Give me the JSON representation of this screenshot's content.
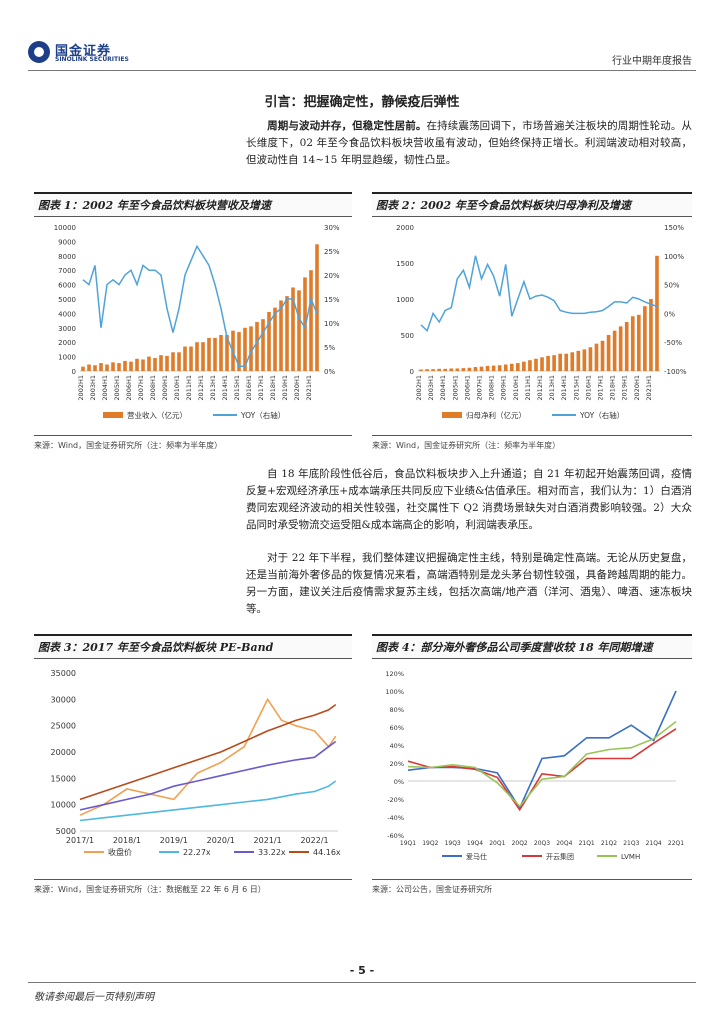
{
  "header": {
    "logo_cn": "国金证券",
    "logo_en": "SINOLINK SECURITIES",
    "report_type": "行业中期年度报告"
  },
  "intro": {
    "title": "引言：把握确定性，静候疫后弹性",
    "para1_lead": "周期与波动并存，但稳定性居前。",
    "para1_body": "在持续震荡回调下，市场普遍关注板块的周期性轮动。从长维度下，02 年至今食品饮料板块营收虽有波动，但始终保持正增长。利润端波动相对较高，但波动性自 14~15 年明显趋缓，韧性凸显。",
    "para2": "自 18 年底阶段性低谷后，食品饮料板块步入上升通道；自 21 年初起开始震荡回调，疫情反复+宏观经济承压+成本端承压共同反应下业绩&估值承压。相对而言，我们认为：1）白酒消费同宏观经济波动的相关性较强，社交属性下 Q2 消费场景缺失对白酒消费影响较强。2）大众品同时承受物流交运受阻&成本端高企的影响，利润端表承压。",
    "para3": "对于 22 年下半程，我们整体建议把握确定性主线，特别是确定性高端。无论从历史复盘，还是当前海外奢侈品的恢复情况来看，高端酒特别是龙头茅台韧性较强，具备跨越周期的能力。另一方面，建议关注后疫情需求复苏主线，包括次高端/地产酒（洋河、酒鬼）、啤酒、速冻板块等。"
  },
  "figures": {
    "f1": {
      "title": "图表 1：2002 年至今食品饮料板块营收及增速",
      "legend_bar": "营业收入（亿元）",
      "legend_line": "YOY（右轴）",
      "source": "来源：Wind，国金证券研究所（注：频率为半年度）"
    },
    "f2": {
      "title": "图表 2：2002 年至今食品饮料板块归母净利及增速",
      "legend_bar": "归母净利（亿元）",
      "legend_line": "YOY（右轴）",
      "source": "来源：Wind，国金证券研究所（注：频率为半年度）"
    },
    "f3": {
      "title": "图表 3：2017 年至今食品饮料板块 PE-Band",
      "source": "来源：Wind，国金证券研究所（注：数据截至 22 年 6 月 6 日）"
    },
    "f4": {
      "title": "图表 4：部分海外奢侈品公司季度营收较 18 年同期增速",
      "source": "来源：公司公告，国金证券研究所"
    }
  },
  "chart_data": [
    {
      "type": "bar",
      "id": "chart1",
      "title": "2002 年至今食品饮料板块营收及增速",
      "categories": [
        "2002H1",
        "2002H2",
        "2003H1",
        "2003H2",
        "2004H1",
        "2004H2",
        "2005H1",
        "2005H2",
        "2006H1",
        "2006H2",
        "2007H1",
        "2007H2",
        "2008H1",
        "2008H2",
        "2009H1",
        "2009H2",
        "2010H1",
        "2010H2",
        "2011H1",
        "2011H2",
        "2012H1",
        "2012H2",
        "2013H1",
        "2013H2",
        "2014H1",
        "2014H2",
        "2015H1",
        "2015H2",
        "2016H1",
        "2016H2",
        "2017H1",
        "2017H2",
        "2018H1",
        "2018H2",
        "2019H1",
        "2019H2",
        "2020H1",
        "2020H2",
        "2021H1",
        "2021H2"
      ],
      "x_tick_labels": [
        "2002H1",
        "2003H1",
        "2004H1",
        "2005H1",
        "2006H1",
        "2007H1",
        "2008H1",
        "2009H1",
        "2010H1",
        "2011H1",
        "2012H1",
        "2013H1",
        "2014H1",
        "2015H1",
        "2016H1",
        "2017H1",
        "2018H1",
        "2019H1",
        "2020H1",
        "2021H1"
      ],
      "series": [
        {
          "name": "营业收入（亿元）",
          "axis": "left",
          "values": [
            300,
            450,
            400,
            550,
            450,
            600,
            550,
            700,
            650,
            850,
            800,
            1000,
            900,
            1100,
            1050,
            1300,
            1300,
            1700,
            1700,
            2000,
            2000,
            2300,
            2300,
            2500,
            2500,
            2800,
            2700,
            3000,
            3100,
            3400,
            3600,
            4100,
            4400,
            4900,
            5200,
            5800,
            5600,
            6500,
            7000,
            8800
          ]
        },
        {
          "name": "YOY（右轴）",
          "axis": "right",
          "values": [
            0.19,
            0.18,
            0.22,
            0.09,
            0.18,
            0.19,
            0.18,
            0.2,
            0.21,
            0.18,
            0.22,
            0.21,
            0.21,
            0.2,
            0.13,
            0.08,
            0.13,
            0.2,
            0.23,
            0.26,
            0.24,
            0.22,
            0.18,
            0.13,
            0.07,
            0.04,
            0.01,
            0.01,
            0.04,
            0.06,
            0.08,
            0.1,
            0.12,
            0.13,
            0.15,
            0.15,
            0.11,
            0.09,
            0.15,
            0.12
          ]
        }
      ],
      "ylim_left": [
        0,
        10000
      ],
      "yticks_left": [
        0,
        1000,
        2000,
        3000,
        4000,
        5000,
        6000,
        7000,
        8000,
        9000,
        10000
      ],
      "ylim_right": [
        0,
        0.3
      ],
      "yticks_right": [
        "0%",
        "5%",
        "10%",
        "15%",
        "20%",
        "25%",
        "30%"
      ],
      "colors": {
        "bar": "#e07b29",
        "line": "#4fa3d8"
      }
    },
    {
      "type": "bar",
      "id": "chart2",
      "title": "2002 年至今食品饮料板块归母净利及增速",
      "categories": [
        "2002H1",
        "2002H2",
        "2003H1",
        "2003H2",
        "2004H1",
        "2004H2",
        "2005H1",
        "2005H2",
        "2006H1",
        "2006H2",
        "2007H1",
        "2007H2",
        "2008H1",
        "2008H2",
        "2009H1",
        "2009H2",
        "2010H1",
        "2010H2",
        "2011H1",
        "2011H2",
        "2012H1",
        "2012H2",
        "2013H1",
        "2013H2",
        "2014H1",
        "2014H2",
        "2015H1",
        "2015H2",
        "2016H1",
        "2016H2",
        "2017H1",
        "2017H2",
        "2018H1",
        "2018H2",
        "2019H1",
        "2019H2",
        "2020H1",
        "2020H2",
        "2021H1",
        "2021H2"
      ],
      "x_tick_labels": [
        "2002H1",
        "2003H1",
        "2004H1",
        "2005H1",
        "2006H1",
        "2007H1",
        "2008H1",
        "2009H1",
        "2010H1",
        "2011H1",
        "2012H1",
        "2013H1",
        "2014H1",
        "2015H1",
        "2016H1",
        "2017H1",
        "2018H1",
        "2019H1",
        "2020H1",
        "2021H1"
      ],
      "series": [
        {
          "name": "归母净利（亿元）",
          "axis": "left",
          "values": [
            20,
            25,
            25,
            30,
            30,
            35,
            35,
            40,
            45,
            55,
            60,
            70,
            75,
            80,
            90,
            100,
            110,
            130,
            150,
            170,
            190,
            210,
            220,
            240,
            240,
            260,
            280,
            300,
            330,
            380,
            420,
            500,
            560,
            620,
            680,
            760,
            780,
            900,
            1000,
            1600
          ]
        },
        {
          "name": "YOY（右轴）",
          "axis": "right",
          "values": [
            -0.2,
            -0.3,
            0.0,
            -0.15,
            0.05,
            0.1,
            0.6,
            0.75,
            0.45,
            1.0,
            0.6,
            0.85,
            0.65,
            0.3,
            0.85,
            -0.05,
            0.25,
            0.55,
            0.25,
            0.3,
            0.32,
            0.28,
            0.22,
            0.05,
            0.02,
            0.0,
            0.0,
            0.0,
            0.02,
            0.03,
            0.05,
            0.12,
            0.2,
            0.2,
            0.18,
            0.28,
            0.25,
            0.2,
            0.16,
            0.12
          ]
        }
      ],
      "ylim_left": [
        0,
        2000
      ],
      "yticks_left": [
        0,
        500,
        1000,
        1500,
        2000
      ],
      "ylim_right": [
        -1.0,
        1.5
      ],
      "yticks_right": [
        "-100%",
        "-50%",
        "0%",
        "50%",
        "100%",
        "150%"
      ],
      "colors": {
        "bar": "#e07b29",
        "line": "#4fa3d8"
      }
    },
    {
      "type": "line",
      "id": "chart3",
      "title": "2017 年至今食品饮料板块 PE-Band",
      "x": [
        2017.0,
        2017.5,
        2018.0,
        2018.5,
        2019.0,
        2019.5,
        2020.0,
        2020.5,
        2021.0,
        2021.3,
        2021.6,
        2022.0,
        2022.3,
        2022.45
      ],
      "x_tick_labels": [
        "2017/1",
        "2018/1",
        "2019/1",
        "2020/1",
        "2021/1",
        "2022/1"
      ],
      "series": [
        {
          "name": "收盘价",
          "color": "#f0a050",
          "values": [
            8000,
            10000,
            13000,
            12000,
            11000,
            16000,
            18000,
            21000,
            30000,
            26000,
            25000,
            24000,
            21000,
            23000
          ]
        },
        {
          "name": "22.27x",
          "color": "#4fb8e0",
          "values": [
            7000,
            7500,
            8000,
            8500,
            9000,
            9500,
            10000,
            10500,
            11000,
            11500,
            12000,
            12500,
            13500,
            14500
          ]
        },
        {
          "name": "33.22x",
          "color": "#6a5acd",
          "values": [
            9000,
            10000,
            11000,
            12000,
            13500,
            14500,
            15500,
            16500,
            17500,
            18000,
            18500,
            19000,
            21000,
            22000
          ]
        },
        {
          "name": "44.16x",
          "color": "#b94a1a",
          "values": [
            11000,
            12500,
            14000,
            15500,
            17000,
            18500,
            20000,
            22000,
            24000,
            25000,
            26000,
            27000,
            28000,
            29000
          ]
        }
      ],
      "ylim": [
        5000,
        35000
      ],
      "yticks": [
        5000,
        10000,
        15000,
        20000,
        25000,
        30000,
        35000
      ]
    },
    {
      "type": "line",
      "id": "chart4",
      "title": "部分海外奢侈品公司季度营收较 18 年同期增速",
      "categories": [
        "19Q1",
        "19Q2",
        "19Q3",
        "19Q4",
        "20Q1",
        "20Q2",
        "20Q3",
        "20Q4",
        "21Q1",
        "21Q2",
        "21Q3",
        "21Q4",
        "22Q1"
      ],
      "series": [
        {
          "name": "爱马仕",
          "color": "#3a6fc4",
          "values": [
            0.12,
            0.15,
            0.15,
            0.14,
            0.09,
            -0.3,
            0.25,
            0.28,
            0.48,
            0.48,
            0.62,
            0.45,
            1.0
          ]
        },
        {
          "name": "开云集团",
          "color": "#d93838",
          "values": [
            0.22,
            0.15,
            0.16,
            0.13,
            0.04,
            -0.32,
            0.08,
            0.05,
            0.25,
            0.25,
            0.25,
            0.42,
            0.58
          ]
        },
        {
          "name": "LVMH",
          "color": "#98c456",
          "values": [
            0.16,
            0.15,
            0.18,
            0.15,
            -0.02,
            -0.28,
            0.02,
            0.05,
            0.3,
            0.35,
            0.37,
            0.47,
            0.66
          ]
        }
      ],
      "ylim": [
        -0.6,
        1.2
      ],
      "yticks": [
        "-60%",
        "-40%",
        "-20%",
        "0%",
        "20%",
        "40%",
        "60%",
        "80%",
        "100%",
        "120%"
      ]
    }
  ],
  "page": {
    "number": "- 5 -",
    "footer": "敬请参阅最后一页特别声明"
  }
}
